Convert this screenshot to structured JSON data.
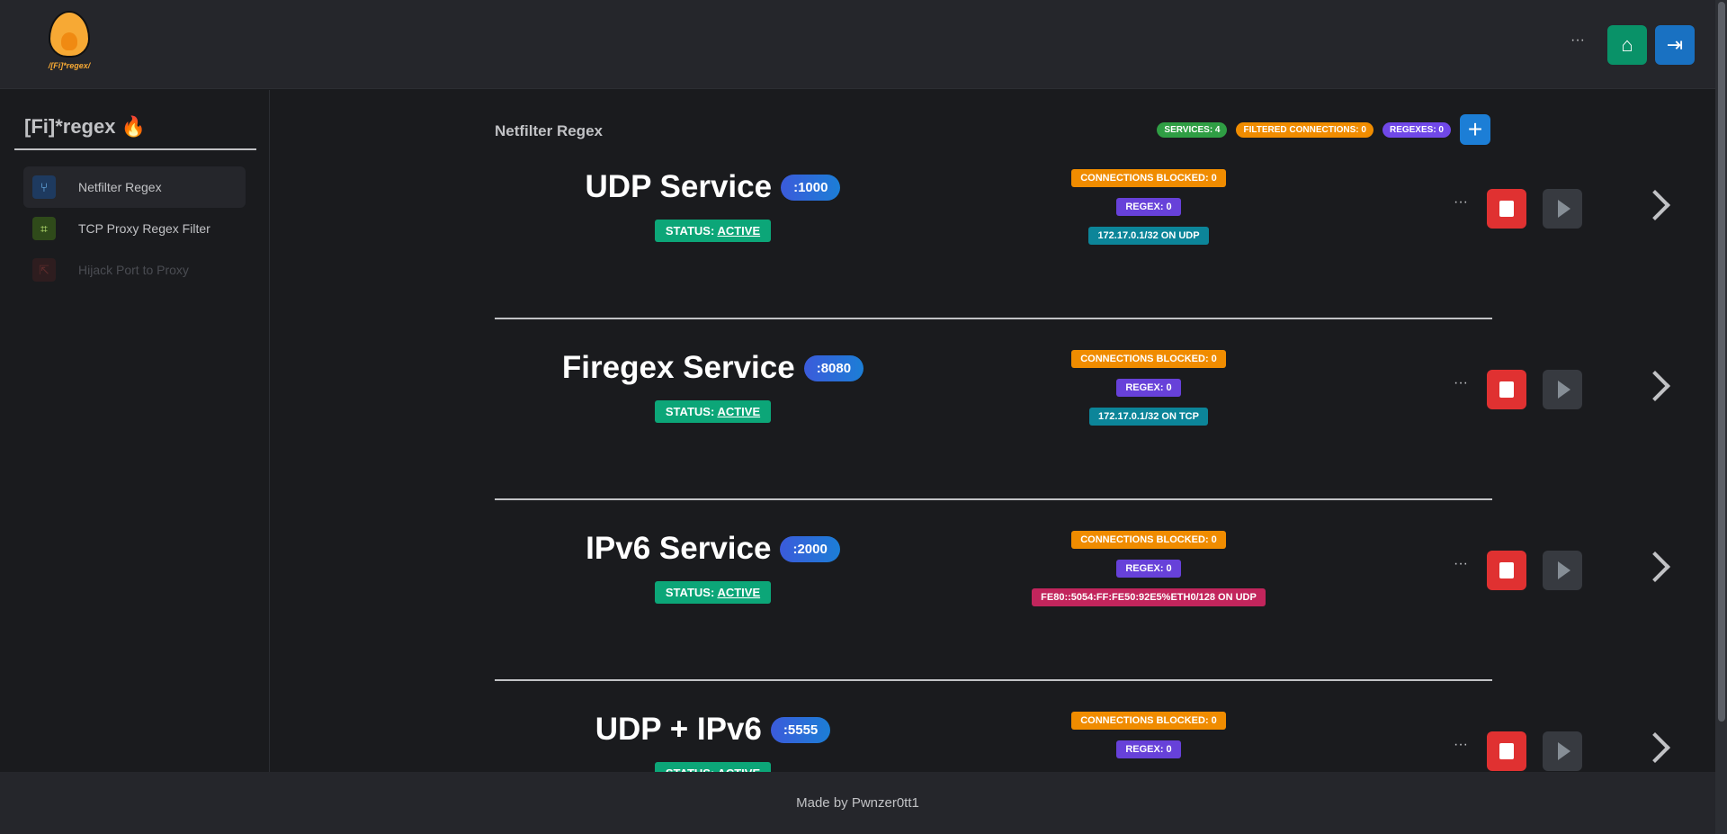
{
  "header": {
    "logo_text": "/[Fi]*regex/",
    "more": "···",
    "home_icon": "home-icon",
    "logout_icon": "logout-icon"
  },
  "sidebar": {
    "title": "[Fi]*regex",
    "title_emoji": "🔥",
    "items": [
      {
        "label": "Netfilter Regex",
        "icon": "fork-icon",
        "color": "#74c0fc",
        "bg": "#1e3a5f"
      },
      {
        "label": "TCP Proxy Regex Filter",
        "icon": "crop-icon",
        "color": "#c0eb75",
        "bg": "#2f4a1a"
      },
      {
        "label": "Hijack Port to Proxy",
        "icon": "split-arrow-icon",
        "color": "#5c2b2b",
        "bg": "#2e1d1f"
      }
    ]
  },
  "main": {
    "title": "Netfilter Regex",
    "stats": {
      "services": "Services: 4",
      "filtered": "Filtered Connections: 0",
      "regexes": "Regexes: 0"
    },
    "add": "+"
  },
  "services": [
    {
      "name": "UDP Service",
      "port": ":1000",
      "status_label": "STATUS:",
      "status": "ACTIVE",
      "blocked": "Connections Blocked: 0",
      "regex": "Regex: 0",
      "addr": "172.17.0.1/32 on UDP",
      "addr_color": "#0c8599"
    },
    {
      "name": "Firegex Service",
      "port": ":8080",
      "status_label": "STATUS:",
      "status": "ACTIVE",
      "blocked": "Connections Blocked: 0",
      "regex": "Regex: 0",
      "addr": "172.17.0.1/32 on TCP",
      "addr_color": "#0c8599"
    },
    {
      "name": "IPv6 Service",
      "port": ":2000",
      "status_label": "STATUS:",
      "status": "ACTIVE",
      "blocked": "Connections Blocked: 0",
      "regex": "Regex: 0",
      "addr": "fe80::5054:ff:fe50:92e5%eth0/128 on UDP",
      "addr_color": "#c2255c"
    },
    {
      "name": "UDP + IPv6",
      "port": ":5555",
      "status_label": "STATUS:",
      "status": "ACTIVE",
      "blocked": "Connections Blocked: 0",
      "regex": "Regex: 0",
      "addr": "",
      "addr_color": "#c2255c"
    }
  ],
  "row_more": "···",
  "footer": {
    "text": "Made by Pwnzer0tt1"
  },
  "colors": {
    "services": "#2f9e44",
    "filtered": "#f08c00",
    "regexes": "#7048e8",
    "home": "#099268",
    "logout": "#1971c2"
  }
}
